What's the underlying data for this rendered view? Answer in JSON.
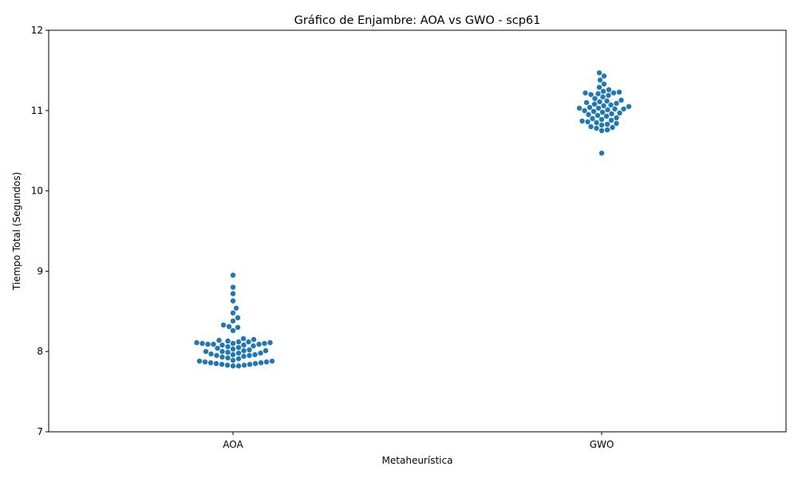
{
  "chart_data": {
    "type": "scatter",
    "subtype": "swarm",
    "title": "Gráfico de Enjambre: AOA vs GWO - scp61",
    "xlabel": "Metaheurística",
    "ylabel": "Tiempo Total (Segundos)",
    "ylim": [
      7,
      12
    ],
    "yticks": [
      "7",
      "8",
      "9",
      "10",
      "11",
      "12"
    ],
    "categories": [
      "AOA",
      "GWO"
    ],
    "grid": false,
    "legend": "none",
    "point_color": "#1f77b4",
    "series": [
      {
        "values": [
          7.82,
          7.82,
          7.83,
          7.83,
          7.84,
          7.84,
          7.85,
          7.85,
          7.86,
          7.86,
          7.87,
          7.87,
          7.88,
          7.88,
          7.89,
          7.91,
          7.92,
          7.93,
          7.94,
          7.95,
          7.95,
          7.96,
          7.96,
          7.97,
          7.98,
          7.98,
          7.99,
          8.0,
          8.0,
          8.01,
          8.01,
          8.02,
          8.03,
          8.04,
          8.05,
          8.06,
          8.07,
          8.08,
          8.08,
          8.09,
          8.09,
          8.09,
          8.1,
          8.1,
          8.1,
          8.11,
          8.11,
          8.12,
          8.12,
          8.13,
          8.14,
          8.15,
          8.16,
          8.26,
          8.3,
          8.31,
          8.33,
          8.38,
          8.42,
          8.48,
          8.54,
          8.63,
          8.72,
          8.8,
          8.95
        ]
      },
      {
        "values": [
          10.47,
          10.75,
          10.76,
          10.78,
          10.79,
          10.8,
          10.82,
          10.83,
          10.84,
          10.85,
          10.86,
          10.87,
          10.88,
          10.89,
          10.9,
          10.91,
          10.93,
          10.94,
          10.95,
          10.96,
          10.97,
          10.98,
          10.99,
          11.0,
          11.01,
          11.02,
          11.02,
          11.03,
          11.03,
          11.04,
          11.05,
          11.06,
          11.07,
          11.08,
          11.09,
          11.1,
          11.11,
          11.12,
          11.13,
          11.15,
          11.17,
          11.19,
          11.2,
          11.21,
          11.22,
          11.22,
          11.23,
          11.24,
          11.26,
          11.29,
          11.33,
          11.38,
          11.43,
          11.47
        ]
      }
    ]
  }
}
